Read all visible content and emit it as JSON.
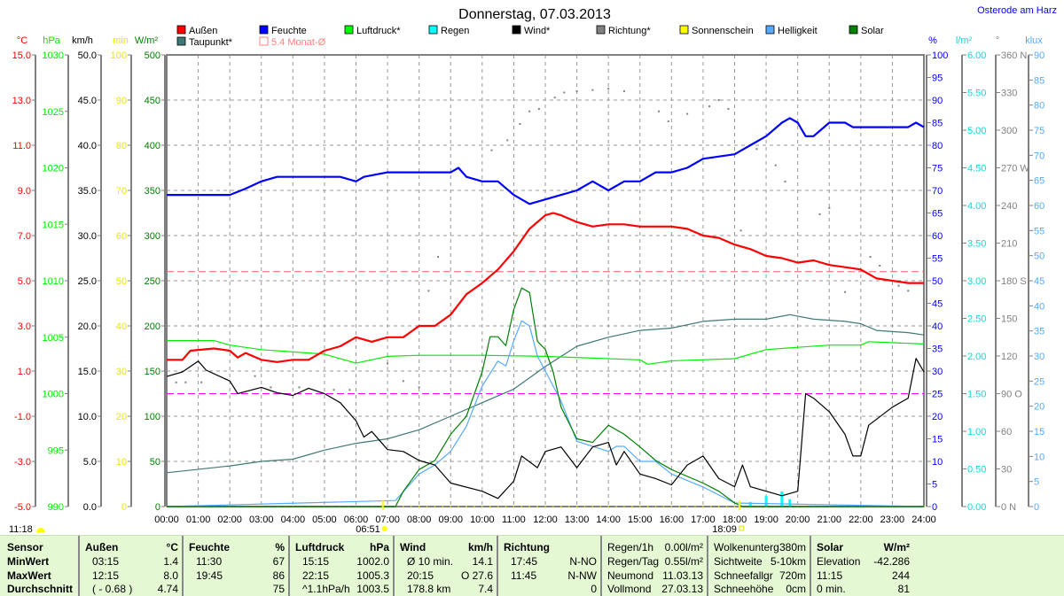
{
  "title": "Donnerstag, 07.03.2013",
  "location": "Osterode am Harz",
  "legend": [
    {
      "label": "Außen",
      "color": "#ff0000"
    },
    {
      "label": "Feuchte",
      "color": "#0000ff"
    },
    {
      "label": "Luftdruck*",
      "color": "#00ff00"
    },
    {
      "label": "Regen",
      "color": "#00ffff"
    },
    {
      "label": "Wind*",
      "color": "#000000"
    },
    {
      "label": "Richtung*",
      "color": "#808080"
    },
    {
      "label": "Sonnenschein",
      "color": "#ffff00"
    },
    {
      "label": "Helligkeit",
      "color": "#55aaff"
    },
    {
      "label": "Solar",
      "color": "#008000"
    },
    {
      "label": "Taupunkt*",
      "color": "#407878"
    },
    {
      "label": "5.4 Monat-Ø",
      "color": "#ff8080"
    }
  ],
  "markers": {
    "sunrise": "06:51",
    "sunset": "18:09",
    "daylength": "11:18"
  },
  "chart_data": {
    "type": "line",
    "title": "Donnerstag, 07.03.2013",
    "x_range_hours": [
      0,
      24
    ],
    "x_ticks": [
      "00:00",
      "01:00",
      "02:00",
      "03:00",
      "04:00",
      "05:00",
      "06:00",
      "07:00",
      "08:00",
      "09:00",
      "10:00",
      "11:00",
      "12:00",
      "13:00",
      "14:00",
      "15:00",
      "16:00",
      "17:00",
      "18:00",
      "19:00",
      "20:00",
      "21:00",
      "22:00",
      "23:00",
      "24:00"
    ],
    "axes": [
      {
        "id": "temp",
        "unit": "°C",
        "color": "#ff0000",
        "side": "left",
        "range": [
          -5,
          15
        ],
        "ticks": [
          "15.0",
          "13.0",
          "11.0",
          "9.0",
          "7.0",
          "5.0",
          "3.0",
          "1.0",
          "-1.0",
          "-3.0",
          "-5.0"
        ]
      },
      {
        "id": "press",
        "unit": "hPa",
        "color": "#00ee00",
        "side": "left",
        "range": [
          990,
          1030
        ],
        "ticks": [
          "1030",
          "1025",
          "1020",
          "1015",
          "1010",
          "1005",
          "1000",
          "995",
          "990"
        ]
      },
      {
        "id": "wind",
        "unit": "km/h",
        "color": "#000000",
        "side": "left",
        "range": [
          0,
          50
        ],
        "ticks": [
          "50.0",
          "45.0",
          "40.0",
          "35.0",
          "30.0",
          "25.0",
          "20.0",
          "15.0",
          "10.0",
          "5.0",
          "0.0"
        ]
      },
      {
        "id": "sun",
        "unit": "min",
        "color": "#e8e800",
        "side": "left",
        "range": [
          0,
          100
        ],
        "ticks": [
          "100",
          "90",
          "80",
          "70",
          "60",
          "50",
          "40",
          "30",
          "20",
          "10",
          "0"
        ]
      },
      {
        "id": "solar",
        "unit": "W/m²",
        "color": "#008000",
        "side": "left",
        "range": [
          0,
          500
        ],
        "ticks": [
          "500",
          "450",
          "400",
          "350",
          "300",
          "250",
          "200",
          "150",
          "100",
          "50",
          "0"
        ]
      },
      {
        "id": "hum",
        "unit": "%",
        "color": "#0000ff",
        "side": "right",
        "range": [
          0,
          100
        ],
        "ticks": [
          "100",
          "95",
          "90",
          "85",
          "80",
          "75",
          "70",
          "65",
          "60",
          "55",
          "50",
          "45",
          "40",
          "35",
          "30",
          "25",
          "20",
          "15",
          "10",
          "5",
          "0"
        ]
      },
      {
        "id": "rain",
        "unit": "l/m²",
        "color": "#00e0e0",
        "side": "right",
        "range": [
          0,
          6
        ],
        "ticks": [
          "6.00",
          "5.50",
          "5.00",
          "4.50",
          "4.00",
          "3.50",
          "3.00",
          "2.50",
          "2.00",
          "1.50",
          "1.00",
          "0.50",
          "0.00"
        ]
      },
      {
        "id": "dir",
        "unit": "°",
        "color": "#808080",
        "side": "right",
        "range": [
          0,
          360
        ],
        "ticks": [
          "360 N",
          "330",
          "300",
          "270 W",
          "240",
          "210",
          "180 S",
          "150",
          "120",
          "90  O",
          "60",
          "30",
          "0    N"
        ]
      },
      {
        "id": "lux",
        "unit": "klux",
        "color": "#55aaff",
        "side": "right",
        "range": [
          0,
          90
        ],
        "ticks": [
          "90",
          "85",
          "80",
          "75",
          "70",
          "65",
          "60",
          "55",
          "50",
          "45",
          "40",
          "35",
          "30",
          "25",
          "20",
          "15",
          "10",
          "5",
          "0"
        ]
      }
    ],
    "reference_lines": [
      {
        "name": "Monat-Ø",
        "axis": "temp",
        "value": 5.4,
        "color": "#ff6060"
      },
      {
        "name": "ref-25",
        "axis": "hum",
        "value": 25,
        "color": "#ff00ff"
      }
    ],
    "series": [
      {
        "name": "Außen",
        "axis": "temp",
        "color": "#ff0000",
        "width": 2.2,
        "x": [
          0,
          0.5,
          0.75,
          1.5,
          2,
          2.25,
          2.5,
          3,
          3.5,
          4,
          4.5,
          5,
          5.5,
          6,
          6.5,
          7,
          7.5,
          8,
          8.5,
          9,
          9.5,
          10,
          10.5,
          11,
          11.5,
          12,
          12.25,
          12.5,
          13,
          13.5,
          14,
          14.5,
          15,
          16,
          16.5,
          17,
          17.5,
          18,
          18.5,
          19,
          19.5,
          20,
          20.5,
          21,
          21.5,
          22,
          22.5,
          23,
          23.5,
          24
        ],
        "y": [
          1.5,
          1.5,
          1.9,
          2.0,
          1.9,
          1.6,
          1.8,
          1.5,
          1.4,
          1.5,
          1.5,
          1.9,
          2.1,
          2.5,
          2.3,
          2.5,
          2.5,
          3.0,
          3.0,
          3.5,
          4.4,
          4.9,
          5.5,
          6.3,
          7.3,
          7.9,
          8.0,
          7.9,
          7.6,
          7.4,
          7.5,
          7.5,
          7.4,
          7.4,
          7.3,
          7.0,
          6.9,
          6.6,
          6.4,
          6.1,
          6.0,
          5.8,
          5.9,
          5.7,
          5.6,
          5.5,
          5.1,
          5.0,
          4.9,
          4.9
        ]
      },
      {
        "name": "Feuchte",
        "axis": "hum",
        "color": "#0000ff",
        "width": 2.2,
        "x": [
          0,
          2,
          2.5,
          3,
          3.5,
          5.5,
          6,
          6.25,
          7,
          9,
          9.25,
          9.5,
          10,
          10.5,
          11,
          11.5,
          12,
          12.5,
          13,
          13.5,
          14,
          14.5,
          15,
          15.5,
          16,
          16.5,
          17,
          18,
          18.5,
          19,
          19.5,
          19.75,
          20,
          20.25,
          20.5,
          21,
          21.5,
          21.75,
          23.5,
          23.75,
          24
        ],
        "y": [
          69,
          69,
          70.4,
          72,
          73,
          73,
          72,
          73,
          74,
          74,
          75,
          73,
          72,
          72,
          69,
          67,
          68,
          69,
          70,
          72,
          70,
          72,
          72,
          74,
          74,
          75,
          77,
          78,
          80,
          82,
          85,
          86,
          85,
          82,
          82,
          85,
          85,
          84,
          84,
          85,
          84
        ]
      },
      {
        "name": "Luftdruck*",
        "axis": "press",
        "color": "#00ee00",
        "width": 1.2,
        "x": [
          0,
          1.5,
          2,
          3,
          5,
          6,
          7,
          8,
          10,
          12,
          15,
          15.25,
          16,
          18,
          19,
          20,
          21,
          22,
          22.25,
          24
        ],
        "y": [
          1004.7,
          1004.7,
          1004.3,
          1003.9,
          1003.5,
          1002.7,
          1003.3,
          1003.4,
          1003.4,
          1003.3,
          1003.0,
          1002.6,
          1002.9,
          1003.1,
          1003.9,
          1004.1,
          1004.3,
          1004.3,
          1004.6,
          1004.4
        ]
      },
      {
        "name": "Taupunkt*",
        "axis": "temp",
        "color": "#407878",
        "width": 1.2,
        "x": [
          0,
          2,
          3,
          4,
          5,
          6,
          7,
          8,
          9,
          10,
          11,
          12,
          13,
          14,
          15,
          16,
          17,
          18,
          19,
          19.75,
          20.5,
          21.5,
          22,
          22.5,
          23.5,
          24
        ],
        "y": [
          -3.5,
          -3.2,
          -3.0,
          -2.9,
          -2.5,
          -2.2,
          -2.0,
          -1.6,
          -1.0,
          -0.4,
          0.2,
          1.2,
          2.1,
          2.5,
          2.8,
          2.9,
          3.2,
          3.3,
          3.3,
          3.5,
          3.3,
          3.2,
          3.1,
          2.8,
          2.7,
          2.6
        ]
      },
      {
        "name": "Wind*",
        "axis": "wind",
        "color": "#000000",
        "width": 1.2,
        "x": [
          0,
          0.5,
          1,
          1.25,
          2,
          2.25,
          3,
          3.5,
          4,
          4.5,
          5,
          5.5,
          6,
          6.25,
          6.5,
          7,
          7.5,
          8,
          8.5,
          9,
          10,
          10.5,
          11,
          11.25,
          11.75,
          12,
          12.5,
          13,
          13.5,
          14,
          14.25,
          14.5,
          15,
          15.5,
          16,
          16.5,
          17,
          17.5,
          18,
          18.25,
          18.5,
          19,
          19.5,
          20,
          20.25,
          20.5,
          21,
          21.5,
          21.75,
          22,
          22.25,
          23,
          23.5,
          23.75,
          24
        ],
        "y": [
          14.4,
          14.9,
          16.1,
          15.1,
          13.9,
          12.5,
          13.2,
          12.6,
          12.3,
          13.1,
          12.5,
          11.5,
          9.5,
          7.7,
          8.3,
          6.3,
          6.1,
          5.1,
          4.6,
          2.6,
          1.7,
          0.9,
          2.8,
          5.6,
          4.3,
          6.1,
          6.6,
          4.3,
          6.6,
          7.1,
          4.6,
          6.1,
          3.6,
          3.1,
          2.4,
          4.6,
          5.6,
          3.1,
          2.2,
          4.6,
          2.2,
          1.7,
          1.2,
          1.7,
          12.5,
          12.0,
          10.5,
          8.0,
          5.6,
          5.6,
          9.0,
          11.0,
          12.0,
          16.4,
          14.9
        ]
      },
      {
        "name": "Solar",
        "axis": "solar",
        "color": "#008000",
        "width": 1.2,
        "x": [
          0,
          7.25,
          7.5,
          8,
          8.5,
          9,
          9.5,
          10,
          10.25,
          10.5,
          10.75,
          11,
          11.25,
          11.5,
          11.75,
          12,
          12.25,
          12.5,
          13,
          13.5,
          14,
          14.5,
          15,
          15.5,
          16,
          17,
          17.5,
          18,
          18.25,
          24
        ],
        "y": [
          0,
          0,
          17,
          41,
          51,
          80,
          100,
          149,
          188,
          188,
          178,
          218,
          242,
          237,
          183,
          174,
          149,
          110,
          75,
          71,
          90,
          80,
          66,
          51,
          41,
          26,
          17,
          4,
          0,
          0
        ]
      },
      {
        "name": "Helligkeit",
        "axis": "lux",
        "color": "#55aaff",
        "width": 1.2,
        "x": [
          0,
          7.25,
          8,
          8.5,
          9,
          9.5,
          10,
          10.5,
          10.75,
          11,
          11.25,
          11.5,
          11.75,
          12,
          12.5,
          13,
          14,
          14.25,
          14.5,
          15,
          15.5,
          16,
          17,
          18,
          24
        ],
        "y": [
          0,
          1.2,
          6.5,
          8.3,
          11,
          16,
          24,
          29,
          28,
          33,
          37,
          36,
          30,
          27,
          21,
          13,
          11,
          12,
          12,
          9,
          9,
          6.5,
          3.9,
          0.7,
          0
        ]
      }
    ],
    "direction_points": {
      "name": "Richtung*",
      "axis": "dir",
      "color": "#808080",
      "x": [
        0.3,
        0.6,
        1.1,
        2.8,
        3.3,
        4.2,
        5.3,
        5.8,
        7.0,
        7.5,
        8.0,
        8.3,
        8.6,
        10.3,
        10.8,
        11.2,
        11.5,
        11.8,
        12.3,
        12.6,
        13.0,
        13.5,
        14.0,
        14.5,
        15.6,
        15.9,
        16.5,
        17.2,
        17.5,
        17.8,
        18.2,
        18.7,
        19.3,
        19.6,
        20.7,
        21.0,
        21.5,
        22.3,
        22.6,
        23.2,
        23.5
      ],
      "y": [
        99,
        99,
        99,
        104,
        95,
        95,
        93,
        93,
        114,
        100,
        95,
        172,
        199,
        284,
        292,
        305,
        315,
        317,
        326,
        330,
        331,
        332,
        333,
        331,
        315,
        307,
        313,
        319,
        324,
        317,
        220,
        285,
        272,
        259,
        233,
        238,
        171,
        199,
        192,
        176,
        172
      ]
    },
    "rain_bars": {
      "name": "Regen",
      "axis": "rain",
      "color": "#00ffff",
      "x": [
        18.5,
        19.0,
        19.5,
        19.75
      ],
      "y": [
        0.06,
        0.14,
        0.2,
        0.1
      ]
    }
  },
  "table": {
    "groups": [
      {
        "bold_first": true,
        "rows": [
          [
            "Sensor",
            ""
          ],
          [
            "MinWert",
            ""
          ],
          [
            "MaxWert",
            ""
          ],
          [
            "Durchschnitt",
            ""
          ]
        ],
        "all_bold": true
      },
      {
        "bold_first": true,
        "rows": [
          [
            "Außen",
            "°C"
          ],
          [
            "03:15",
            "1.4"
          ],
          [
            "12:15",
            "8.0"
          ],
          [
            "( - 0.68 )",
            "4.74"
          ]
        ]
      },
      {
        "bold_first": true,
        "rows": [
          [
            "Feuchte",
            "%"
          ],
          [
            "11:30",
            "67"
          ],
          [
            "19:45",
            "86"
          ],
          [
            "",
            "75"
          ]
        ]
      },
      {
        "bold_first": true,
        "rows": [
          [
            "Luftdruck",
            "hPa"
          ],
          [
            "15:15",
            "1002.0"
          ],
          [
            "22:15",
            "1005.3"
          ],
          [
            "^1.1hPa/h",
            "1003.5"
          ]
        ]
      },
      {
        "bold_first": true,
        "rows": [
          [
            "Wind",
            "km/h"
          ],
          [
            "Ø 10 min.",
            "14.1"
          ],
          [
            "20:15",
            "O 27.6"
          ],
          [
            "178.8 km",
            "7.4"
          ]
        ]
      },
      {
        "bold_first": true,
        "rows": [
          [
            "Richtung",
            ""
          ],
          [
            "17:45",
            "N-NO"
          ],
          [
            "11:45",
            "N-NW"
          ],
          [
            "",
            "0"
          ]
        ]
      },
      {
        "bold_first": false,
        "rows": [
          [
            "Regen/1h",
            "0.00l/m²"
          ],
          [
            "Regen/Tag",
            "0.55l/m²"
          ],
          [
            "Neumond",
            "11.03.13"
          ],
          [
            "Vollmond",
            "27.03.13"
          ]
        ]
      },
      {
        "bold_first": false,
        "rows": [
          [
            "Wolkenunterg",
            "380m"
          ],
          [
            "Sichtweite",
            "5-10km"
          ],
          [
            "Schneefallgr",
            "720m"
          ],
          [
            "Schneehöhe",
            "0cm"
          ]
        ]
      },
      {
        "bold_first": true,
        "rows": [
          [
            "Solar",
            "W/m²"
          ],
          [
            "Elevation",
            "-42.286"
          ],
          [
            "11:15",
            "244"
          ],
          [
            "0 min.",
            "81"
          ]
        ]
      }
    ]
  }
}
